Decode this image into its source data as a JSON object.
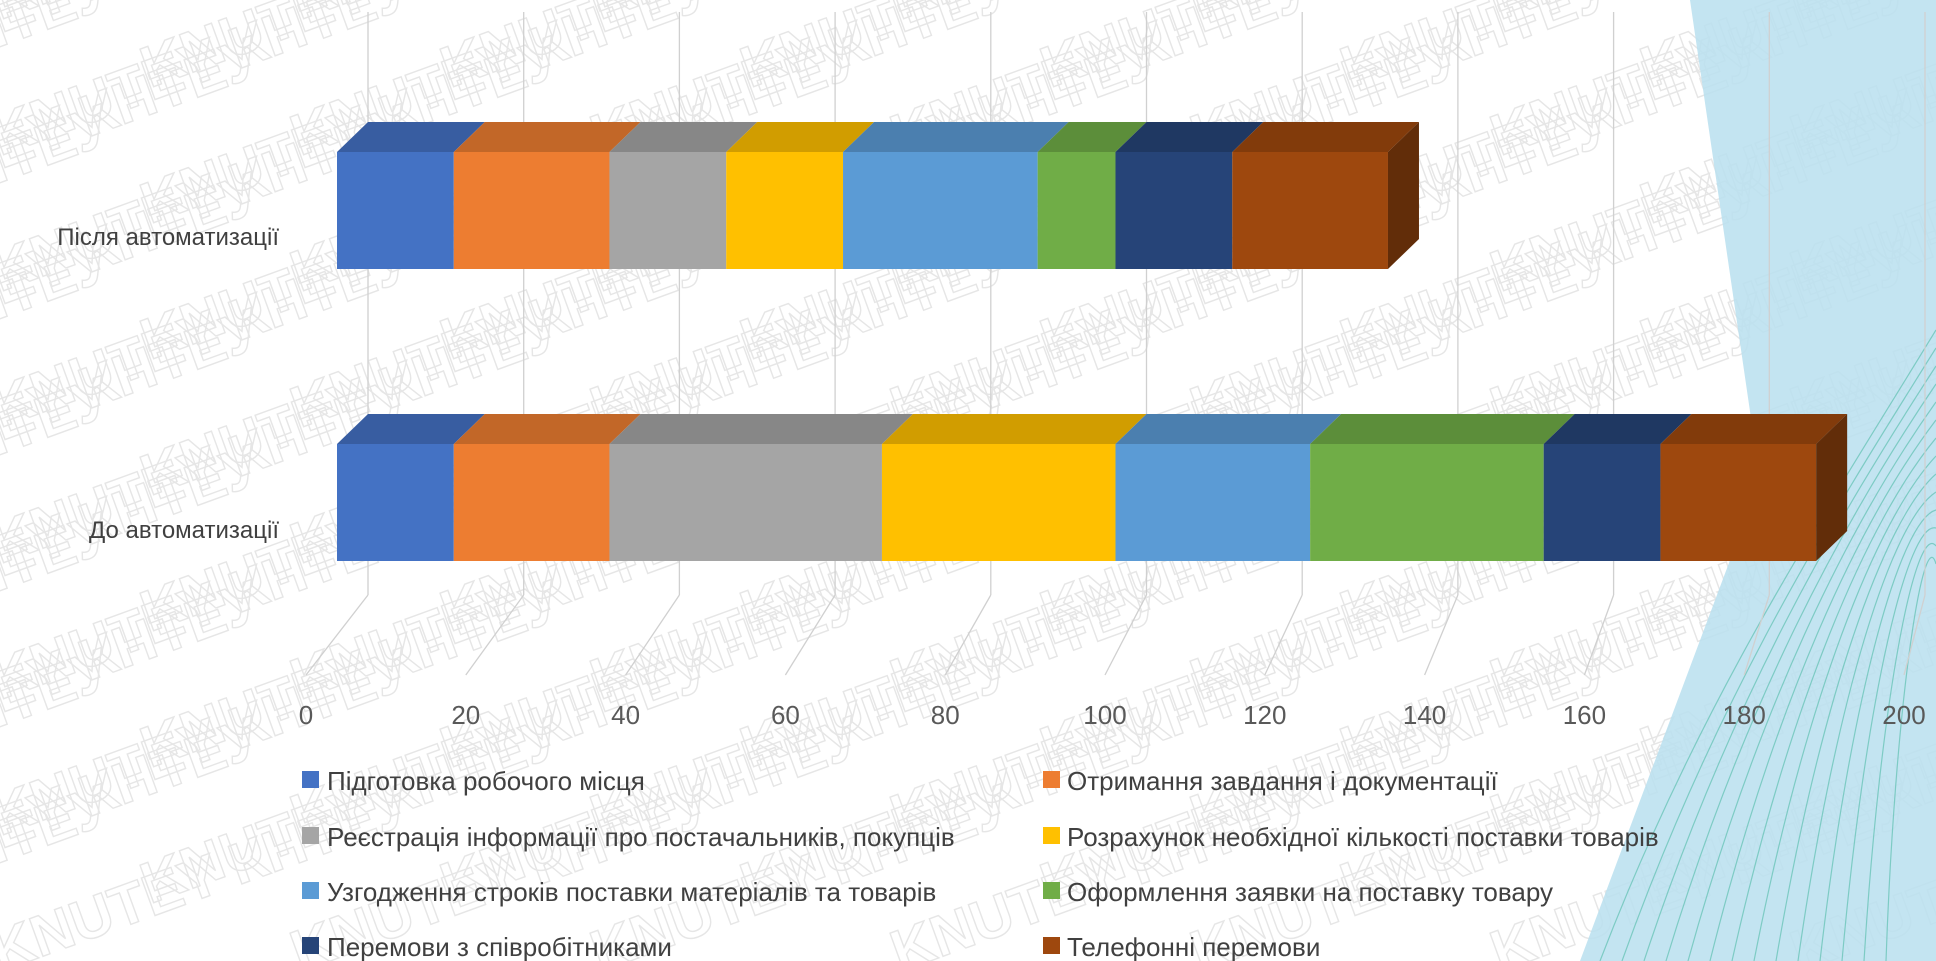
{
  "watermark": {
    "text": "KNUTEY КНТЕУ"
  },
  "colors": {
    "series": [
      "#4472c4",
      "#ed7d31",
      "#a5a5a5",
      "#ffc000",
      "#5b9bd5",
      "#70ad47",
      "#264478",
      "#9e480e"
    ],
    "accent_band": "#b9dfee"
  },
  "chart_data": {
    "type": "bar",
    "orientation": "horizontal",
    "stacked": true,
    "three_d": true,
    "categories": [
      "Після автоматизації",
      "До автоматизації"
    ],
    "series": [
      {
        "name": "Підготовка робочого місця",
        "values": [
          15,
          15
        ]
      },
      {
        "name": "Отримання завдання і документації",
        "values": [
          20,
          20
        ]
      },
      {
        "name": "Реєстрація інформації про постачальників, покупців",
        "values": [
          15,
          35
        ]
      },
      {
        "name": "Розрахунок необхідної кількості поставки товарів",
        "values": [
          15,
          30
        ]
      },
      {
        "name": "Узгодження строків поставки матеріалів та товарів",
        "values": [
          25,
          25
        ]
      },
      {
        "name": "Оформлення заявки на поставку товару",
        "values": [
          10,
          30
        ]
      },
      {
        "name": "Перемови з співробітниками",
        "values": [
          15,
          15
        ]
      },
      {
        "name": "Телефонні перемови",
        "values": [
          20,
          20
        ]
      }
    ],
    "xlim": [
      0,
      200
    ],
    "xticks": [
      "0",
      "20",
      "40",
      "60",
      "80",
      "100",
      "120",
      "140",
      "160",
      "180",
      "200"
    ],
    "grid": true,
    "legend_position": "bottom"
  }
}
